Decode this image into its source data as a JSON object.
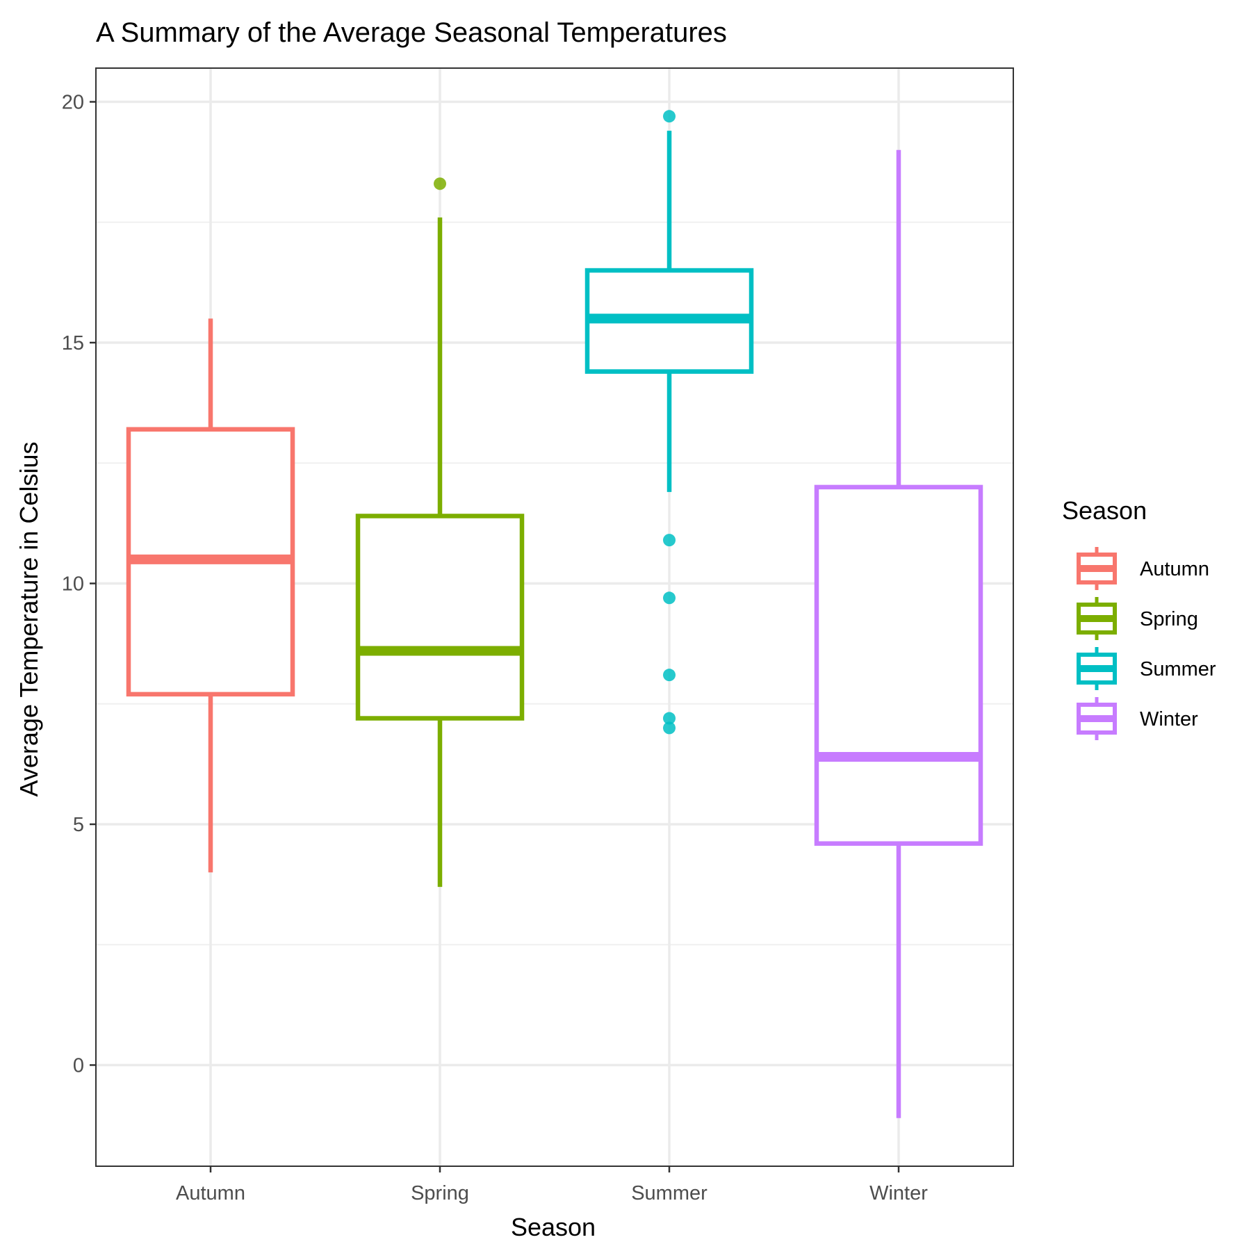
{
  "chart_data": {
    "type": "boxplot",
    "title": "A Summary of the Average Seasonal Temperatures",
    "xlabel": "Season",
    "ylabel": "Average Temperature in Celsius",
    "categories": [
      "Autumn",
      "Spring",
      "Summer",
      "Winter"
    ],
    "ylim": [
      -2.1,
      20.7
    ],
    "yticks": [
      0,
      5,
      10,
      15,
      20
    ],
    "grid": true,
    "legend": {
      "title": "Season",
      "position": "right"
    },
    "series": [
      {
        "name": "Autumn",
        "color": "#F8766D",
        "min": 4.0,
        "q1": 7.7,
        "median": 10.5,
        "q3": 13.2,
        "max": 15.5,
        "outliers": []
      },
      {
        "name": "Spring",
        "color": "#7CAE00",
        "min": 3.7,
        "q1": 7.2,
        "median": 8.6,
        "q3": 11.4,
        "max": 17.6,
        "outliers": [
          18.3
        ]
      },
      {
        "name": "Summer",
        "color": "#00BFC4",
        "min": 11.9,
        "q1": 14.4,
        "median": 15.5,
        "q3": 16.5,
        "max": 19.4,
        "outliers": [
          19.7,
          10.9,
          9.7,
          8.1,
          7.2,
          7.0
        ]
      },
      {
        "name": "Winter",
        "color": "#C77CFF",
        "min": -1.1,
        "q1": 4.6,
        "median": 6.4,
        "q3": 12.0,
        "max": 19.0,
        "outliers": []
      }
    ]
  }
}
